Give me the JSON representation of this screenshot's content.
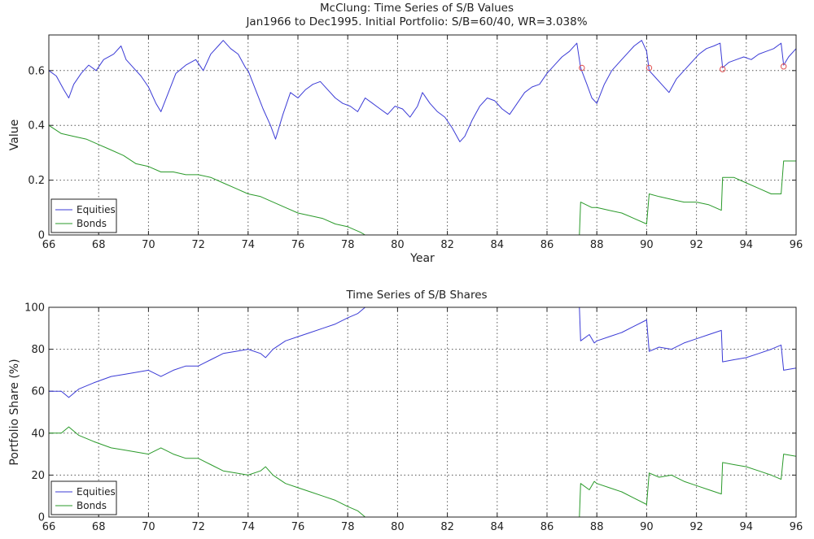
{
  "figure": {
    "top": {
      "title": "McClung: Time Series of S/B Values",
      "subtitle": "Jan1966 to Dec1995. Initial Portfolio: S/B=60/40, WR=3.038%"
    },
    "bottom": {
      "title": "Time Series of S/B Shares"
    }
  },
  "colors": {
    "equities": "#3b3bd6",
    "bonds": "#2a9a2a",
    "marker": "#e05050"
  },
  "chart_data": [
    {
      "type": "line",
      "title": "McClung: Time Series of S/B Values",
      "subtitle": "Jan1966 to Dec1995. Initial Portfolio: S/B=60/40, WR=3.038%",
      "xlabel": "Year",
      "ylabel": "Value",
      "xlim": [
        66,
        96
      ],
      "ylim": [
        0,
        0.73
      ],
      "xticks": [
        66,
        68,
        70,
        72,
        74,
        76,
        78,
        80,
        82,
        84,
        86,
        88,
        90,
        92,
        94,
        96
      ],
      "yticks": [
        0,
        0.2,
        0.4,
        0.6
      ],
      "ytick_labels": [
        "0",
        "0.2",
        "0.4",
        "0.6"
      ],
      "grid": true,
      "legend": "bottom-left",
      "series": [
        {
          "name": "Equities",
          "x": [
            66.0,
            66.3,
            66.6,
            66.8,
            67.0,
            67.3,
            67.6,
            67.9,
            68.2,
            68.6,
            68.9,
            69.1,
            69.4,
            69.7,
            70.0,
            70.3,
            70.5,
            70.8,
            71.1,
            71.5,
            71.9,
            72.2,
            72.5,
            72.8,
            73.0,
            73.3,
            73.6,
            73.9,
            74.0,
            74.3,
            74.6,
            74.9,
            75.1,
            75.4,
            75.7,
            76.0,
            76.3,
            76.6,
            76.9,
            77.2,
            77.5,
            77.8,
            78.1,
            78.4,
            78.7,
            79.0,
            79.3,
            79.6,
            79.9,
            80.2,
            80.5,
            80.8,
            81.0,
            81.3,
            81.6,
            81.9,
            82.2,
            82.5,
            82.7,
            83.0,
            83.3,
            83.6,
            83.9,
            84.2,
            84.5,
            84.8,
            85.1,
            85.4,
            85.7,
            86.0,
            86.3,
            86.6,
            86.9,
            87.2,
            87.35,
            87.6,
            87.8,
            88.0,
            88.3,
            88.6,
            88.9,
            89.2,
            89.5,
            89.8,
            90.0,
            90.1,
            90.3,
            90.6,
            90.9,
            91.2,
            91.5,
            91.8,
            92.1,
            92.4,
            92.7,
            92.95,
            93.05,
            93.3,
            93.6,
            93.9,
            94.2,
            94.5,
            94.8,
            95.1,
            95.4,
            95.5,
            95.7,
            96.0
          ],
          "values": [
            0.6,
            0.58,
            0.53,
            0.5,
            0.55,
            0.59,
            0.62,
            0.6,
            0.64,
            0.66,
            0.69,
            0.64,
            0.61,
            0.58,
            0.54,
            0.48,
            0.45,
            0.52,
            0.59,
            0.62,
            0.64,
            0.6,
            0.66,
            0.69,
            0.71,
            0.68,
            0.66,
            0.61,
            0.6,
            0.53,
            0.46,
            0.4,
            0.35,
            0.44,
            0.52,
            0.5,
            0.53,
            0.55,
            0.56,
            0.53,
            0.5,
            0.48,
            0.47,
            0.45,
            0.5,
            0.48,
            0.46,
            0.44,
            0.47,
            0.46,
            0.43,
            0.47,
            0.52,
            0.48,
            0.45,
            0.43,
            0.39,
            0.34,
            0.36,
            0.42,
            0.47,
            0.5,
            0.49,
            0.46,
            0.44,
            0.48,
            0.52,
            0.54,
            0.55,
            0.59,
            0.62,
            0.65,
            0.67,
            0.7,
            0.61,
            0.55,
            0.5,
            0.48,
            0.55,
            0.6,
            0.63,
            0.66,
            0.69,
            0.71,
            0.67,
            0.6,
            0.58,
            0.55,
            0.52,
            0.57,
            0.6,
            0.63,
            0.66,
            0.68,
            0.69,
            0.7,
            0.61,
            0.63,
            0.64,
            0.65,
            0.64,
            0.66,
            0.67,
            0.68,
            0.7,
            0.62,
            0.65,
            0.68
          ]
        },
        {
          "name": "Bonds",
          "x": [
            66.0,
            66.5,
            67.0,
            67.5,
            68.0,
            68.5,
            69.0,
            69.5,
            70.0,
            70.5,
            71.0,
            71.5,
            72.0,
            72.5,
            73.0,
            73.5,
            74.0,
            74.5,
            75.0,
            75.5,
            76.0,
            76.5,
            77.0,
            77.5,
            78.0,
            78.5,
            78.7,
            80.0,
            82.0,
            84.0,
            86.0,
            87.3,
            87.35,
            87.8,
            88.0,
            88.5,
            89.0,
            89.5,
            90.0,
            90.1,
            90.5,
            91.0,
            91.5,
            92.0,
            92.5,
            93.0,
            93.05,
            93.5,
            94.0,
            94.5,
            95.0,
            95.4,
            95.5,
            96.0
          ],
          "values": [
            0.4,
            0.37,
            0.36,
            0.35,
            0.33,
            0.31,
            0.29,
            0.26,
            0.25,
            0.23,
            0.23,
            0.22,
            0.22,
            0.21,
            0.19,
            0.17,
            0.15,
            0.14,
            0.12,
            0.1,
            0.08,
            0.07,
            0.06,
            0.04,
            0.03,
            0.01,
            0.0,
            0.0,
            0.0,
            0.0,
            0.0,
            0.0,
            0.12,
            0.1,
            0.1,
            0.09,
            0.08,
            0.06,
            0.04,
            0.15,
            0.14,
            0.13,
            0.12,
            0.12,
            0.11,
            0.09,
            0.21,
            0.21,
            0.19,
            0.17,
            0.15,
            0.15,
            0.27,
            0.27
          ]
        }
      ],
      "markers": {
        "x": [
          87.4,
          90.1,
          93.05,
          95.5
        ],
        "y": [
          0.61,
          0.61,
          0.605,
          0.615
        ]
      }
    },
    {
      "type": "line",
      "title": "Time Series of S/B Shares",
      "xlabel": "",
      "ylabel": "Portfolio Share (%)",
      "xlim": [
        66,
        96
      ],
      "ylim": [
        0,
        100
      ],
      "xticks": [
        66,
        68,
        70,
        72,
        74,
        76,
        78,
        80,
        82,
        84,
        86,
        88,
        90,
        92,
        94,
        96
      ],
      "yticks": [
        0,
        20,
        40,
        60,
        80,
        100
      ],
      "ytick_labels": [
        "0",
        "20",
        "40",
        "60",
        "80",
        "100"
      ],
      "grid": true,
      "legend": "bottom-left",
      "series": [
        {
          "name": "Equities",
          "x": [
            66.0,
            66.5,
            66.8,
            67.2,
            67.8,
            68.5,
            69.0,
            69.5,
            70.0,
            70.5,
            71.0,
            71.5,
            72.0,
            72.5,
            73.0,
            73.5,
            74.0,
            74.5,
            74.7,
            75.0,
            75.5,
            76.0,
            76.5,
            77.0,
            77.5,
            78.0,
            78.4,
            78.7,
            80.0,
            82.0,
            84.0,
            86.0,
            87.3,
            87.35,
            87.7,
            87.9,
            88.0,
            88.5,
            89.0,
            89.5,
            90.0,
            90.1,
            90.5,
            91.0,
            91.5,
            92.0,
            92.5,
            93.0,
            93.05,
            93.5,
            94.0,
            94.5,
            95.0,
            95.4,
            95.5,
            96.0
          ],
          "values": [
            60,
            60,
            57,
            61,
            64,
            67,
            68,
            69,
            70,
            67,
            70,
            72,
            72,
            75,
            78,
            79,
            80,
            78,
            76,
            80,
            84,
            86,
            88,
            90,
            92,
            95,
            97,
            100,
            100,
            100,
            100,
            100,
            100,
            84,
            87,
            83,
            84,
            86,
            88,
            91,
            94,
            79,
            81,
            80,
            83,
            85,
            87,
            89,
            74,
            75,
            76,
            78,
            80,
            82,
            70,
            71
          ]
        },
        {
          "name": "Bonds",
          "x": [
            66.0,
            66.5,
            66.8,
            67.2,
            67.8,
            68.5,
            69.0,
            69.5,
            70.0,
            70.5,
            71.0,
            71.5,
            72.0,
            72.5,
            73.0,
            73.5,
            74.0,
            74.5,
            74.7,
            75.0,
            75.5,
            76.0,
            76.5,
            77.0,
            77.5,
            78.0,
            78.4,
            78.7,
            80.0,
            82.0,
            84.0,
            86.0,
            87.3,
            87.35,
            87.7,
            87.9,
            88.0,
            88.5,
            89.0,
            89.5,
            90.0,
            90.1,
            90.5,
            91.0,
            91.5,
            92.0,
            92.5,
            93.0,
            93.05,
            93.5,
            94.0,
            94.5,
            95.0,
            95.4,
            95.5,
            96.0
          ],
          "values": [
            40,
            40,
            43,
            39,
            36,
            33,
            32,
            31,
            30,
            33,
            30,
            28,
            28,
            25,
            22,
            21,
            20,
            22,
            24,
            20,
            16,
            14,
            12,
            10,
            8,
            5,
            3,
            0,
            0,
            0,
            0,
            0,
            0,
            16,
            13,
            17,
            16,
            14,
            12,
            9,
            6,
            21,
            19,
            20,
            17,
            15,
            13,
            11,
            26,
            25,
            24,
            22,
            20,
            18,
            30,
            29
          ]
        }
      ]
    }
  ]
}
